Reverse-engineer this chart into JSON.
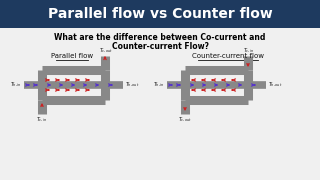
{
  "title": "Parallel flow vs Counter flow",
  "title_bg": "#1e3a5f",
  "title_color": "white",
  "subtitle_line1": "What are the difference between Co-current and",
  "subtitle_line2": "Counter-current Flow?",
  "subtitle_color": "black",
  "bg_color": "#f0f0f0",
  "left_label": "Parallel flow",
  "right_label": "Counter-current flow",
  "pipe_color": "#888888",
  "pipe_dark": "#555555",
  "hot_arrow_color": "#cc2222",
  "cold_arrow_color": "#5533cc",
  "black": "#111111",
  "title_fontsize": 10,
  "subtitle_fontsize": 5.5,
  "label_fontsize": 5.0,
  "tick_fontsize": 3.5,
  "pipe_lw": 6.5,
  "inner_lw": 4.0,
  "arrow_lw": 0.9
}
